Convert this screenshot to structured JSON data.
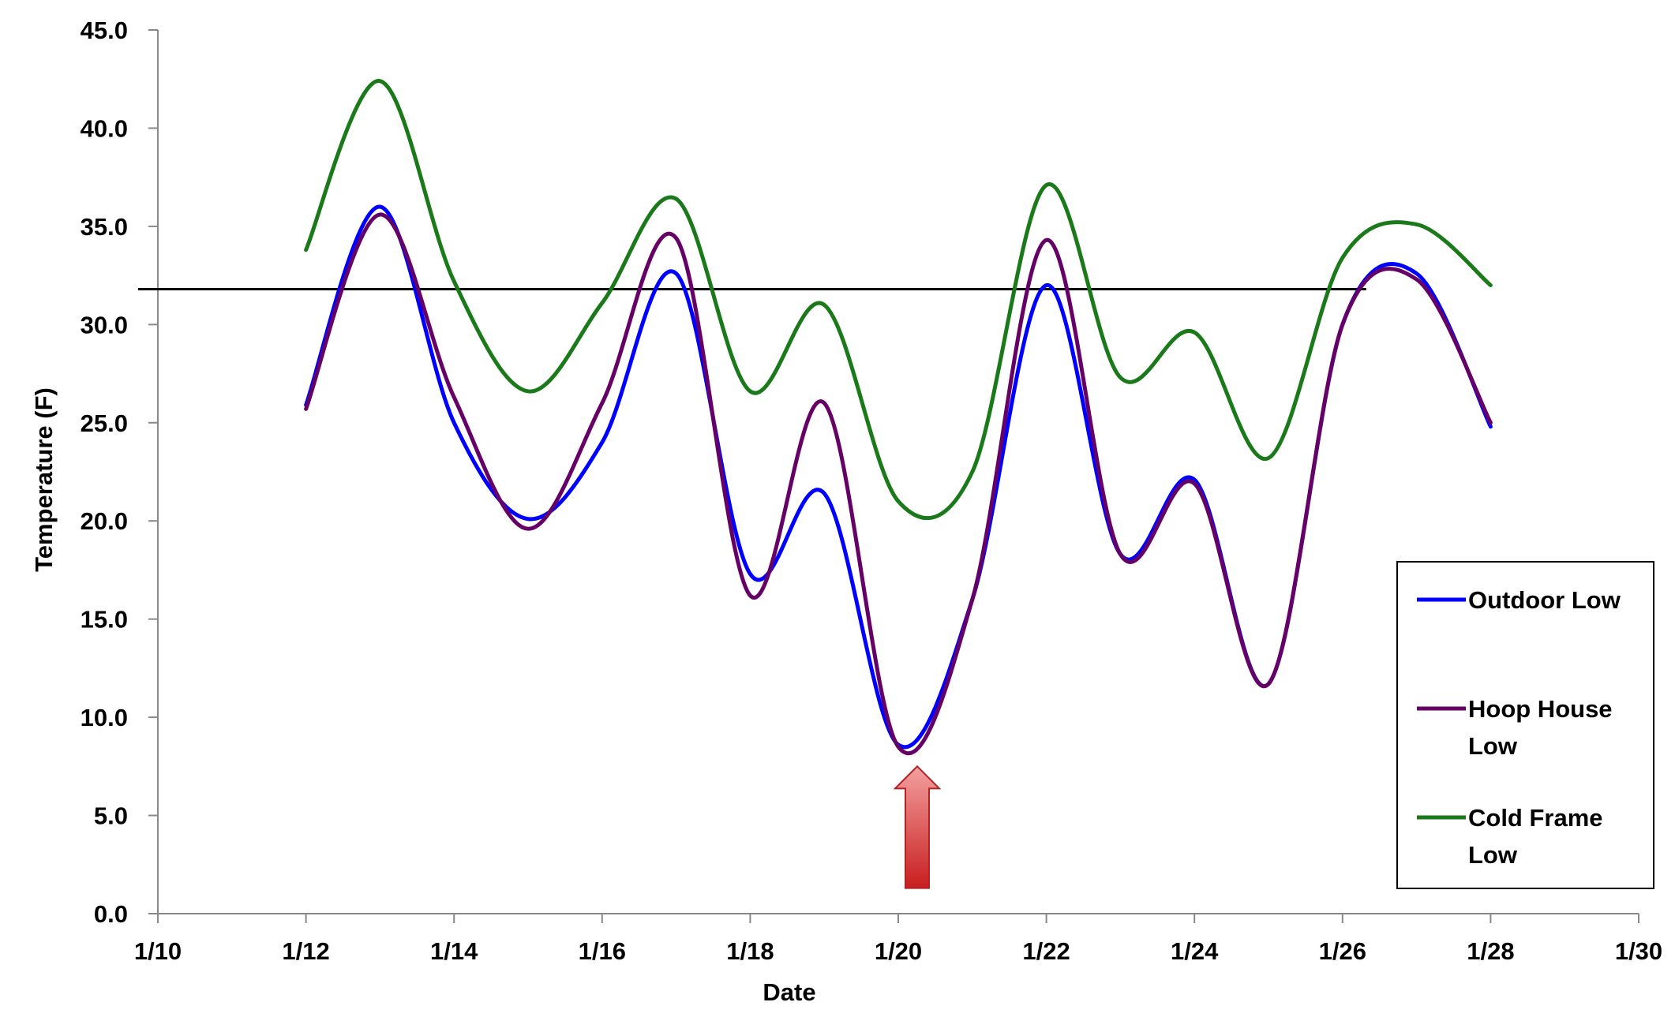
{
  "chart_data": {
    "type": "line",
    "title": "",
    "xlabel": "Date",
    "ylabel": "Temperature (F)",
    "x_tick_labels": [
      "1/10",
      "1/12",
      "1/14",
      "1/16",
      "1/18",
      "1/20",
      "1/22",
      "1/24",
      "1/26",
      "1/28",
      "1/30"
    ],
    "y_tick_labels": [
      "0.0",
      "5.0",
      "10.0",
      "15.0",
      "20.0",
      "25.0",
      "30.0",
      "35.0",
      "40.0",
      "45.0"
    ],
    "xlim": [
      "1/10",
      "1/30"
    ],
    "ylim": [
      0,
      45
    ],
    "grid": false,
    "legend_position": "bottom-right",
    "x": [
      "1/12",
      "1/13",
      "1/14",
      "1/15",
      "1/16",
      "1/17",
      "1/18",
      "1/19",
      "1/20",
      "1/21",
      "1/22",
      "1/23",
      "1/24",
      "1/25",
      "1/26",
      "1/27",
      "1/28"
    ],
    "series": [
      {
        "name": "Outdoor Low",
        "color": "#0000ff",
        "values": [
          25.9,
          36.0,
          25.0,
          20.1,
          24.0,
          32.6,
          17.3,
          21.4,
          8.6,
          16.0,
          32.0,
          18.3,
          22.1,
          11.7,
          30.0,
          32.6,
          24.8
        ]
      },
      {
        "name": "Hoop House\nLow",
        "color": "#660066",
        "values": [
          25.7,
          35.6,
          26.3,
          19.6,
          26.0,
          34.4,
          16.2,
          26.0,
          8.5,
          16.0,
          34.3,
          18.3,
          21.9,
          11.7,
          30.0,
          32.3,
          25.0
        ]
      },
      {
        "name": "Cold Frame\nLow",
        "color": "#1a7a1a",
        "values": [
          33.8,
          42.4,
          32.2,
          26.6,
          31.1,
          36.4,
          26.6,
          31.0,
          21.0,
          22.5,
          37.1,
          27.3,
          29.6,
          23.2,
          33.4,
          35.1,
          32.0
        ]
      }
    ],
    "reference_line": {
      "y": 31.8,
      "x_start": "1/10",
      "x_end": "1/26",
      "color": "#000000"
    },
    "annotations": [
      {
        "type": "arrow",
        "direction": "up",
        "x": "1/20",
        "y_tip": 7.5,
        "y_base": 1.3,
        "color": "#d93030"
      }
    ]
  }
}
